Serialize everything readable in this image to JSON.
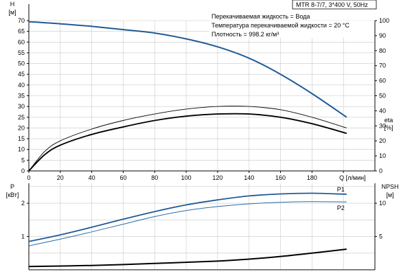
{
  "colors": {
    "head": "#1f5a96",
    "p1": "#1f5a96",
    "p2": "#2a6aa8",
    "eta": "#000000",
    "npsh": "#000000",
    "grid": "#c8c8c8"
  },
  "header": {
    "model": "MTR 8-7/7, 3*400 V, 50Hz",
    "info_lines": [
      "Перекачиваемая жидкость = Вода",
      "Температура перекачиваемой жидкости = 20 °C",
      "Плотность = 998.2 кг/м³"
    ]
  },
  "chart_data": [
    {
      "type": "line",
      "xlabel": "Q [л/мин]",
      "xlim": [
        0,
        220
      ],
      "x_ticks": [
        0,
        20,
        40,
        60,
        80,
        100,
        120,
        140,
        160,
        180
      ],
      "y_left": {
        "label_line1": "H",
        "label_line2": "[м]",
        "lim": [
          0,
          70
        ],
        "ticks": [
          0,
          5,
          10,
          15,
          20,
          25,
          30,
          35,
          40,
          45,
          50,
          55,
          60,
          65,
          70
        ]
      },
      "y_right": {
        "label_line1": "eta",
        "label_line2": "[%]",
        "lim": [
          0,
          100
        ],
        "ticks": [
          0,
          10,
          20,
          30,
          40,
          50,
          60,
          70,
          80,
          90,
          100
        ]
      },
      "grid": true,
      "series": [
        {
          "key": "head",
          "axis": "left",
          "points": [
            [
              0,
              69.5
            ],
            [
              20,
              68.5
            ],
            [
              40,
              67.3
            ],
            [
              60,
              65.8
            ],
            [
              80,
              64.2
            ],
            [
              100,
              61.5
            ],
            [
              120,
              57.8
            ],
            [
              140,
              52.5
            ],
            [
              160,
              45
            ],
            [
              180,
              36
            ],
            [
              202,
              25
            ]
          ]
        },
        {
          "key": "eta_outer",
          "axis": "left",
          "points": [
            [
              0,
              0
            ],
            [
              10,
              9
            ],
            [
              20,
              14
            ],
            [
              40,
              19.5
            ],
            [
              60,
              23.5
            ],
            [
              80,
              26.5
            ],
            [
              100,
              28.8
            ],
            [
              120,
              30
            ],
            [
              140,
              30
            ],
            [
              160,
              28.5
            ],
            [
              180,
              25
            ],
            [
              202,
              20
            ]
          ]
        },
        {
          "key": "eta_inner",
          "axis": "left",
          "points": [
            [
              0,
              0
            ],
            [
              10,
              7.5
            ],
            [
              20,
              12
            ],
            [
              40,
              17
            ],
            [
              60,
              20.5
            ],
            [
              80,
              23.5
            ],
            [
              100,
              25.5
            ],
            [
              120,
              26.5
            ],
            [
              140,
              26.5
            ],
            [
              160,
              25
            ],
            [
              180,
              22
            ],
            [
              202,
              17.5
            ]
          ]
        }
      ]
    },
    {
      "type": "line",
      "xlim": [
        0,
        220
      ],
      "y_left": {
        "label_line1": "P",
        "label_line2": "[кВт]",
        "lim": [
          0,
          2.6
        ],
        "ticks": [
          1,
          2
        ]
      },
      "y_right": {
        "label_line1": "NPSH",
        "label_line2": "[м]",
        "lim": [
          0,
          13
        ],
        "ticks": [
          5,
          10
        ]
      },
      "grid": true,
      "series": [
        {
          "key": "p1",
          "name": "P1",
          "axis": "left",
          "points": [
            [
              0,
              0.85
            ],
            [
              20,
              1.05
            ],
            [
              40,
              1.28
            ],
            [
              60,
              1.52
            ],
            [
              80,
              1.75
            ],
            [
              100,
              1.95
            ],
            [
              120,
              2.1
            ],
            [
              140,
              2.22
            ],
            [
              160,
              2.28
            ],
            [
              180,
              2.3
            ],
            [
              202,
              2.27
            ]
          ]
        },
        {
          "key": "p2",
          "name": "P2",
          "axis": "left",
          "points": [
            [
              0,
              0.72
            ],
            [
              20,
              0.92
            ],
            [
              40,
              1.14
            ],
            [
              60,
              1.37
            ],
            [
              80,
              1.6
            ],
            [
              100,
              1.78
            ],
            [
              120,
              1.9
            ],
            [
              140,
              1.98
            ],
            [
              160,
              2.03
            ],
            [
              180,
              2.05
            ],
            [
              202,
              2.04
            ]
          ]
        },
        {
          "key": "npsh",
          "axis": "right",
          "points": [
            [
              0,
              0.5
            ],
            [
              40,
              0.65
            ],
            [
              80,
              0.95
            ],
            [
              120,
              1.3
            ],
            [
              140,
              1.6
            ],
            [
              160,
              2.0
            ],
            [
              180,
              2.5
            ],
            [
              202,
              3.1
            ]
          ]
        }
      ]
    }
  ]
}
